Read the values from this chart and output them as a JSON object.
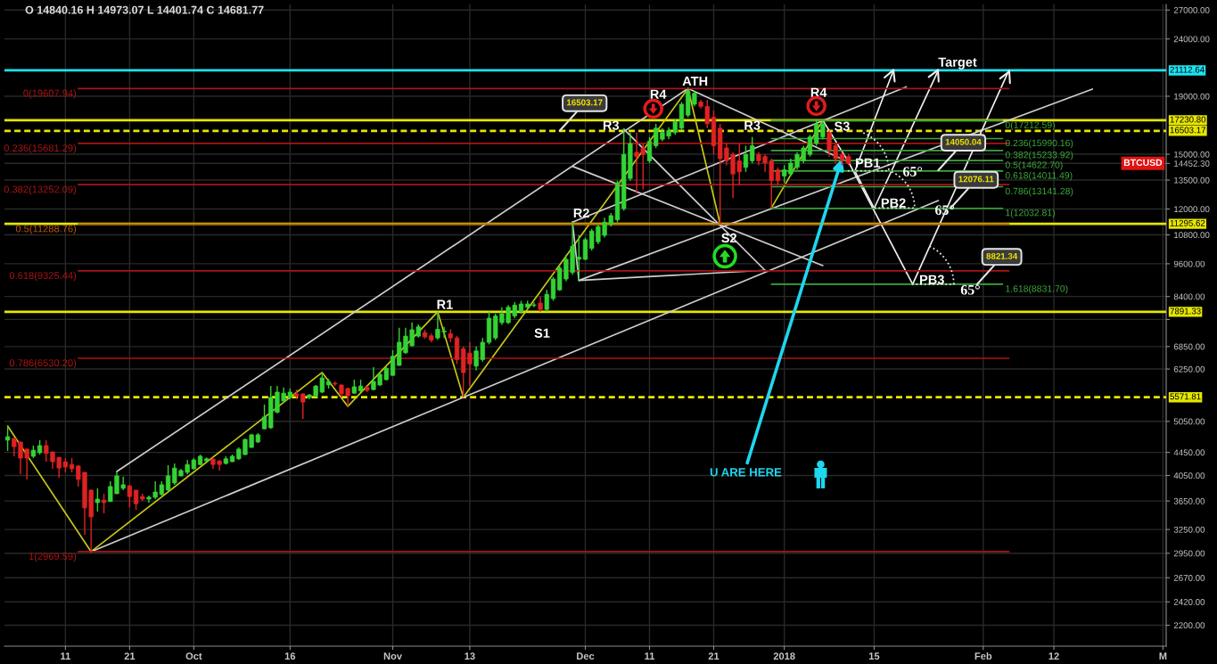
{
  "chart_data": {
    "type": "candlestick",
    "x": [
      "2017-09-02",
      "2017-09-03",
      "2017-09-04",
      "2017-09-05",
      "2017-09-06",
      "2017-09-07",
      "2017-09-08",
      "2017-09-09",
      "2017-09-10",
      "2017-09-11",
      "2017-09-12",
      "2017-09-13",
      "2017-09-14",
      "2017-09-15",
      "2017-09-16",
      "2017-09-17",
      "2017-09-18",
      "2017-09-19",
      "2017-09-20",
      "2017-09-21",
      "2017-09-22",
      "2017-09-23",
      "2017-09-24",
      "2017-09-25",
      "2017-09-26",
      "2017-09-27",
      "2017-09-28",
      "2017-09-29",
      "2017-09-30",
      "2017-10-01",
      "2017-10-02",
      "2017-10-03",
      "2017-10-04",
      "2017-10-05",
      "2017-10-06",
      "2017-10-07",
      "2017-10-08",
      "2017-10-09",
      "2017-10-10",
      "2017-10-11",
      "2017-10-12",
      "2017-10-13",
      "2017-10-14",
      "2017-10-15",
      "2017-10-16",
      "2017-10-17",
      "2017-10-18",
      "2017-10-19",
      "2017-10-20",
      "2017-10-21",
      "2017-10-22",
      "2017-10-23",
      "2017-10-24",
      "2017-10-25",
      "2017-10-26",
      "2017-10-27",
      "2017-10-28",
      "2017-10-29",
      "2017-10-30",
      "2017-10-31",
      "2017-11-01",
      "2017-11-02",
      "2017-11-03",
      "2017-11-04",
      "2017-11-05",
      "2017-11-06",
      "2017-11-07",
      "2017-11-08",
      "2017-11-09",
      "2017-11-10",
      "2017-11-11",
      "2017-11-12",
      "2017-11-13",
      "2017-11-14",
      "2017-11-15",
      "2017-11-16",
      "2017-11-17",
      "2017-11-18",
      "2017-11-19",
      "2017-11-20",
      "2017-11-21",
      "2017-11-22",
      "2017-11-23",
      "2017-11-24",
      "2017-11-25",
      "2017-11-26",
      "2017-11-27",
      "2017-11-28",
      "2017-11-29",
      "2017-11-30",
      "2017-12-01",
      "2017-12-02",
      "2017-12-03",
      "2017-12-04",
      "2017-12-05",
      "2017-12-06",
      "2017-12-07",
      "2017-12-08",
      "2017-12-09",
      "2017-12-10",
      "2017-12-11",
      "2017-12-12",
      "2017-12-13",
      "2017-12-14",
      "2017-12-15",
      "2017-12-16",
      "2017-12-17",
      "2017-12-18",
      "2017-12-19",
      "2017-12-20",
      "2017-12-21",
      "2017-12-22",
      "2017-12-23",
      "2017-12-24",
      "2017-12-25",
      "2017-12-26",
      "2017-12-27",
      "2017-12-28",
      "2017-12-29",
      "2017-12-30",
      "2017-12-31",
      "2018-01-01",
      "2018-01-02",
      "2018-01-03",
      "2018-01-04",
      "2018-01-05",
      "2018-01-06",
      "2018-01-07",
      "2018-01-08",
      "2018-01-09",
      "2018-01-10",
      "2018-01-11"
    ],
    "ohlc": [
      [
        4677,
        4954,
        4477,
        4744
      ],
      [
        4711,
        4720,
        4380,
        4555
      ],
      [
        4643,
        4650,
        4073,
        4347
      ],
      [
        4510,
        4520,
        3986,
        4347
      ],
      [
        4380,
        4575,
        4347,
        4490
      ],
      [
        4445,
        4677,
        4411,
        4575
      ],
      [
        4575,
        4677,
        4284,
        4430
      ],
      [
        4458,
        4470,
        4163,
        4284
      ],
      [
        4361,
        4370,
        4015,
        4175
      ],
      [
        4284,
        4347,
        4102,
        4193
      ],
      [
        4235,
        4347,
        4102,
        4163
      ],
      [
        4211,
        4223,
        3872,
        3986
      ],
      [
        4102,
        4110,
        3181,
        3548
      ],
      [
        3815,
        3828,
        2969.59,
        3421
      ],
      [
        3626,
        3844,
        3497,
        3679
      ],
      [
        3663,
        3760,
        3471,
        3626
      ],
      [
        3642,
        3956,
        3640,
        3872
      ],
      [
        3760,
        4116,
        3755,
        4044
      ],
      [
        3844,
        4032,
        3815,
        3900
      ],
      [
        3883,
        3900,
        3558,
        3716
      ],
      [
        3815,
        3820,
        3522,
        3610
      ],
      [
        3716,
        3760,
        3652,
        3679
      ],
      [
        3679,
        3732,
        3626,
        3706
      ],
      [
        3706,
        3956,
        3679,
        3787
      ],
      [
        3749,
        3956,
        3732,
        3900
      ],
      [
        3815,
        4223,
        3804,
        4044
      ],
      [
        3928,
        4254,
        3900,
        4175
      ],
      [
        4044,
        4163,
        4032,
        4133
      ],
      [
        4102,
        4315,
        4073,
        4235
      ],
      [
        4163,
        4347,
        4151,
        4315
      ],
      [
        4235,
        4411,
        4223,
        4380
      ],
      [
        4297,
        4361,
        4284,
        4335
      ],
      [
        4328,
        4361,
        4163,
        4235
      ],
      [
        4297,
        4315,
        4133,
        4235
      ],
      [
        4254,
        4380,
        4235,
        4335
      ],
      [
        4284,
        4411,
        4280,
        4380
      ],
      [
        4335,
        4542,
        4315,
        4510
      ],
      [
        4411,
        4711,
        4399,
        4691
      ],
      [
        4542,
        4800,
        4529,
        4780
      ],
      [
        4643,
        4814,
        4623,
        4780
      ],
      [
        4898,
        5408,
        4890,
        5141
      ],
      [
        4919,
        5832,
        4898,
        5568
      ],
      [
        5240,
        5832,
        5217,
        5689
      ],
      [
        5486,
        5798,
        5447,
        5665
      ],
      [
        5568,
        5773,
        5527,
        5689
      ],
      [
        5648,
        5748,
        5527,
        5600
      ],
      [
        5648,
        5660,
        5101,
        5463
      ],
      [
        5568,
        5648,
        5527,
        5624
      ],
      [
        5608,
        5857,
        5568,
        5832
      ],
      [
        5689,
        6163,
        5665,
        6029
      ],
      [
        5857,
        6003,
        5773,
        5942
      ],
      [
        5899,
        5942,
        5832,
        5880
      ],
      [
        5857,
        5870,
        5568,
        5648
      ],
      [
        5773,
        5798,
        5369,
        5608
      ],
      [
        5665,
        5985,
        5648,
        5815
      ],
      [
        5715,
        5985,
        5689,
        5832
      ],
      [
        5798,
        5832,
        5689,
        5731
      ],
      [
        5748,
        6298,
        5731,
        5942
      ],
      [
        5857,
        6145,
        5832,
        6118
      ],
      [
        5985,
        6298,
        5968,
        6271
      ],
      [
        6091,
        6747,
        6080,
        6585
      ],
      [
        6344,
        7393,
        6330,
        6973
      ],
      [
        6680,
        7393,
        6651,
        7147
      ],
      [
        6874,
        7555,
        6844,
        7336
      ],
      [
        7147,
        7500,
        7105,
        7425
      ],
      [
        7251,
        7336,
        7074,
        7126
      ],
      [
        7157,
        7220,
        6970,
        7032
      ],
      [
        7095,
        7891,
        7050,
        7350
      ],
      [
        7270,
        7420,
        7095,
        7300
      ],
      [
        7220,
        7350,
        6970,
        7095
      ],
      [
        7095,
        7157,
        6380,
        6495
      ],
      [
        6790,
        6850,
        5572,
        6160
      ],
      [
        6670,
        6970,
        5835,
        6380
      ],
      [
        6325,
        6850,
        6215,
        6730
      ],
      [
        6495,
        7095,
        6440,
        6970
      ],
      [
        6970,
        7895,
        6910,
        7690
      ],
      [
        7095,
        7830,
        7032,
        7760
      ],
      [
        7550,
        8040,
        7485,
        7830
      ],
      [
        7550,
        8110,
        7510,
        8040
      ],
      [
        7760,
        8210,
        7690,
        8110
      ],
      [
        7895,
        8255,
        7830,
        8150
      ],
      [
        8040,
        8255,
        7970,
        8150
      ],
      [
        8100,
        8200,
        8040,
        8120
      ],
      [
        8180,
        8400,
        7895,
        7970
      ],
      [
        7970,
        8630,
        7895,
        8475
      ],
      [
        8330,
        9100,
        8255,
        9020
      ],
      [
        8630,
        9515,
        8600,
        9430
      ],
      [
        9020,
        9950,
        8940,
        9775
      ],
      [
        9265,
        11370,
        9180,
        10310
      ],
      [
        9775,
        10780,
        8970,
        9860
      ],
      [
        9775,
        10680,
        9740,
        10590
      ],
      [
        10220,
        11070,
        10130,
        10970
      ],
      [
        10500,
        11270,
        10400,
        11170
      ],
      [
        10780,
        11580,
        10680,
        11370
      ],
      [
        11270,
        11800,
        11170,
        11680
      ],
      [
        11480,
        13470,
        11370,
        13350
      ],
      [
        12020,
        16680,
        11920,
        14990
      ],
      [
        13590,
        16385,
        13470,
        15670
      ],
      [
        15120,
        16385,
        12770,
        14860
      ],
      [
        15390,
        15670,
        13000,
        14990
      ],
      [
        14600,
        16095,
        14470,
        15810
      ],
      [
        15530,
        16980,
        15390,
        16680
      ],
      [
        15950,
        16680,
        15810,
        16385
      ],
      [
        16150,
        16740,
        15950,
        16530
      ],
      [
        16385,
        17282,
        16236,
        17130
      ],
      [
        16680,
        18560,
        16530,
        18390
      ],
      [
        17590,
        19608,
        17440,
        19400
      ],
      [
        18390,
        19400,
        18230,
        19230
      ],
      [
        18560,
        18730,
        18070,
        18230
      ],
      [
        18230,
        18730,
        16680,
        16980
      ],
      [
        17440,
        17920,
        14990,
        15530
      ],
      [
        16680,
        16980,
        11290,
        14730
      ],
      [
        15390,
        15670,
        14340,
        14600
      ],
      [
        14990,
        15120,
        12550,
        13840
      ],
      [
        14600,
        15670,
        13240,
        13960
      ],
      [
        14220,
        15530,
        13960,
        14990
      ],
      [
        14600,
        16095,
        14470,
        15530
      ],
      [
        14990,
        15120,
        14340,
        14600
      ],
      [
        14860,
        14990,
        13960,
        14470
      ],
      [
        14600,
        14730,
        12060,
        13470
      ],
      [
        14080,
        14220,
        13240,
        13470
      ],
      [
        13720,
        14340,
        13350,
        14080
      ],
      [
        13840,
        14730,
        13720,
        14470
      ],
      [
        14220,
        15120,
        14080,
        14990
      ],
      [
        14600,
        15530,
        14470,
        15390
      ],
      [
        14990,
        16236,
        14860,
        16095
      ],
      [
        15670,
        17282,
        15530,
        16980
      ],
      [
        16095,
        17231,
        15950,
        16980
      ],
      [
        16385,
        16530,
        14860,
        15260
      ],
      [
        15530,
        15670,
        14470,
        14730
      ],
      [
        14990,
        15120,
        14340,
        14600
      ],
      [
        14860,
        14990,
        14340,
        14452.3
      ]
    ],
    "colors": [
      "#34d334",
      "#e02222",
      "#e02222",
      "#e02222",
      "#34d334",
      "#34d334",
      "#e02222",
      "#e02222",
      "#e02222",
      "#e02222",
      "#e02222",
      "#e02222",
      "#e02222",
      "#e02222",
      "#34d334",
      "#e02222",
      "#34d334",
      "#34d334",
      "#34d334",
      "#e02222",
      "#e02222",
      "#e02222",
      "#34d334",
      "#34d334",
      "#34d334",
      "#34d334",
      "#34d334",
      "#34d334",
      "#34d334",
      "#34d334",
      "#34d334",
      "#34d334",
      "#e02222",
      "#e02222",
      "#34d334",
      "#34d334",
      "#34d334",
      "#34d334",
      "#34d334",
      "#34d334",
      "#34d334",
      "#34d334",
      "#34d334",
      "#34d334",
      "#34d334",
      "#e02222",
      "#e02222",
      "#34d334",
      "#34d334",
      "#34d334",
      "#34d334",
      "#e02222",
      "#e02222",
      "#e02222",
      "#34d334",
      "#34d334",
      "#e02222",
      "#34d334",
      "#34d334",
      "#34d334",
      "#34d334",
      "#34d334",
      "#34d334",
      "#34d334",
      "#34d334",
      "#e02222",
      "#e02222",
      "#34d334",
      "#34d334",
      "#e02222",
      "#e02222",
      "#e02222",
      "#e02222",
      "#34d334",
      "#34d334",
      "#34d334",
      "#34d334",
      "#34d334",
      "#34d334",
      "#34d334",
      "#34d334",
      "#34d334",
      "#34d334",
      "#e02222",
      "#34d334",
      "#34d334",
      "#34d334",
      "#34d334",
      "#34d334",
      "#34d334",
      "#34d334",
      "#34d334",
      "#34d334",
      "#34d334",
      "#34d334",
      "#34d334",
      "#34d334",
      "#34d334",
      "#e02222",
      "#e02222",
      "#34d334",
      "#34d334",
      "#34d334",
      "#34d334",
      "#34d334",
      "#34d334",
      "#34d334",
      "#34d334",
      "#e02222",
      "#e02222",
      "#e02222",
      "#e02222",
      "#e02222",
      "#e02222",
      "#e02222",
      "#34d334",
      "#34d334",
      "#e02222",
      "#e02222",
      "#e02222",
      "#e02222",
      "#34d334",
      "#34d334",
      "#34d334",
      "#34d334",
      "#34d334",
      "#34d334",
      "#34d334",
      "#e02222",
      "#e02222",
      "#e02222",
      "#e02222"
    ],
    "series": [
      {
        "type": "line",
        "x": [
          "2017-09-02",
          "2017-09-15",
          "2017-10-21",
          "2017-10-25",
          "2017-11-08",
          "2017-11-12",
          "2017-12-17",
          "2017-12-22"
        ],
        "values": [
          4954,
          2969.59,
          6163,
          5369,
          7891.33,
          5571.81,
          19607.94,
          11290
        ],
        "color": "#c8c814"
      },
      {
        "type": "line",
        "x": [
          "2017-12-30",
          "2018-01-07"
        ],
        "values": [
          12060,
          17231
        ],
        "color": "#c8c814"
      },
      {
        "type": "line",
        "x": [
          "2017-09-19",
          "2017-12-17"
        ],
        "values": [
          4116,
          19607.94
        ],
        "color": "#cfcfcf"
      },
      {
        "type": "line",
        "x": [
          "2017-09-15",
          "2018-01-25"
        ],
        "values": [
          2969.59,
          12420
        ],
        "color": "#cfcfcf"
      },
      {
        "type": "line",
        "x": [
          "2017-11-29",
          "2017-11-30",
          "2018-02-18"
        ],
        "values": [
          11370,
          8970,
          19565
        ],
        "color": "#cfcfcf"
      },
      {
        "type": "line",
        "x": [
          "2017-11-29",
          "2018-01-07"
        ],
        "values": [
          14278,
          9531
        ],
        "color": "#cfcfcf"
      },
      {
        "type": "line",
        "x": [
          "2017-12-07",
          "2017-12-29"
        ],
        "values": [
          16613,
          9347
        ],
        "color": "#cfcfcf"
      },
      {
        "type": "line",
        "x": [
          "2017-11-29",
          "2018-01-20"
        ],
        "values": [
          11370,
          19740
        ],
        "color": "#cfcfcf"
      },
      {
        "type": "line",
        "x": [
          "2017-12-17",
          "2018-01-11"
        ],
        "values": [
          19607.94,
          14540
        ],
        "color": "#cfcfcf"
      },
      {
        "type": "line",
        "x": [
          "2017-11-30",
          "2017-12-29"
        ],
        "values": [
          8970,
          9347
        ],
        "color": "#cfcfcf"
      },
      {
        "type": "line",
        "x": [
          "2018-01-07",
          "2018-01-11"
        ],
        "values": [
          17231,
          14540
        ],
        "color": "#eeeeee"
      },
      {
        "type": "line",
        "x": [
          "2018-01-11",
          "2018-01-21"
        ],
        "values": [
          14540,
          8831.7
        ],
        "color": "#eeeeee"
      },
      {
        "type": "line",
        "x": [
          "2018-01-12",
          "2018-01-18"
        ],
        "values": [
          14005,
          21112.64
        ],
        "color": "#eeeeee"
      },
      {
        "type": "line",
        "x": [
          "2018-01-12",
          "2018-01-15"
        ],
        "values": [
          14005,
          12032.81
        ],
        "color": "#eeeeee"
      },
      {
        "type": "line",
        "x": [
          "2018-01-15",
          "2018-01-25"
        ],
        "values": [
          12032.81,
          21112.64
        ],
        "color": "#eeeeee"
      },
      {
        "type": "line",
        "x": [
          "2018-01-21",
          "2018-02-05"
        ],
        "values": [
          8831.7,
          21112.64
        ],
        "color": "#eeeeee"
      },
      {
        "type": "line",
        "name": "0(19607.94)",
        "x": [
          "2017-09-13",
          "2018-02-05"
        ],
        "values": [
          19607.94,
          19607.94
        ],
        "color": "#a81414"
      },
      {
        "type": "line",
        "name": "0.236(15681.29)",
        "x": [
          "2017-09-13",
          "2018-02-05"
        ],
        "values": [
          15681.29,
          15681.29
        ],
        "color": "#a81414"
      },
      {
        "type": "line",
        "name": "0.382(13252.09)",
        "x": [
          "2017-09-13",
          "2018-02-05"
        ],
        "values": [
          13252.09,
          13252.09
        ],
        "color": "#a81414"
      },
      {
        "type": "line",
        "name": "0.5(11288.76)",
        "x": [
          "2017-09-13",
          "2018-02-05"
        ],
        "values": [
          11288.76,
          11288.76
        ],
        "color": "#c2560e"
      },
      {
        "type": "line",
        "name": "0.618(9325.44)",
        "x": [
          "2017-09-13",
          "2018-02-05"
        ],
        "values": [
          9325.44,
          9325.44
        ],
        "color": "#a81414"
      },
      {
        "type": "line",
        "name": "0.786(6530.20)",
        "x": [
          "2017-09-13",
          "2018-02-05"
        ],
        "values": [
          6530.2,
          6530.2
        ],
        "color": "#a81414"
      },
      {
        "type": "line",
        "name": "1(2969.59)",
        "x": [
          "2017-09-13",
          "2018-02-05"
        ],
        "values": [
          2969.59,
          2969.59
        ],
        "color": "#a81414"
      },
      {
        "type": "line",
        "name": "0(17212.59)",
        "x": [
          "2017-12-30",
          "2018-02-04"
        ],
        "values": [
          17212.59,
          17212.59
        ],
        "color": "#3aa83a"
      },
      {
        "type": "line",
        "name": "0.236(15990.16)",
        "x": [
          "2017-12-30",
          "2018-02-04"
        ],
        "values": [
          15990.16,
          15990.16
        ],
        "color": "#3aa83a"
      },
      {
        "type": "line",
        "name": "0.382(15233.92)",
        "x": [
          "2017-12-30",
          "2018-02-04"
        ],
        "values": [
          15233.92,
          15233.92
        ],
        "color": "#3aa83a"
      },
      {
        "type": "line",
        "name": "0.5(14622.70)",
        "x": [
          "2017-12-30",
          "2018-02-04"
        ],
        "values": [
          14622.7,
          14622.7
        ],
        "color": "#3aa83a"
      },
      {
        "type": "line",
        "name": "0.618(14011.49)",
        "x": [
          "2017-12-30",
          "2018-02-04"
        ],
        "values": [
          14011.49,
          14011.49
        ],
        "color": "#3aa83a"
      },
      {
        "type": "line",
        "name": "0.786(13141.28)",
        "x": [
          "2017-12-30",
          "2018-02-04"
        ],
        "values": [
          13141.28,
          13141.28
        ],
        "color": "#3aa83a"
      },
      {
        "type": "line",
        "name": "1(12032.81)",
        "x": [
          "2017-12-30",
          "2018-02-04"
        ],
        "values": [
          12032.81,
          12032.81
        ],
        "color": "#3aa83a"
      },
      {
        "type": "line",
        "name": "1.618(8831.70)",
        "x": [
          "2017-12-30",
          "2018-02-04"
        ],
        "values": [
          8831.7,
          8831.7
        ],
        "color": "#3aa83a"
      }
    ],
    "ref_lines": [
      {
        "axis": "y",
        "value": 21112.64,
        "label": "21112.64",
        "color": "#1ee3f2"
      },
      {
        "axis": "y",
        "value": 17230.8,
        "label": "17230.80",
        "color": "#e6e600"
      },
      {
        "axis": "y",
        "value": 16503.17,
        "label": "16503.17",
        "color": "#e6e600",
        "line_style": "dashed"
      },
      {
        "axis": "y",
        "value": 11295.62,
        "label": "11295.62",
        "color": "#e6e600"
      },
      {
        "axis": "y",
        "value": 7891.33,
        "label": "7891.33",
        "color": "#e6e600"
      },
      {
        "axis": "y",
        "value": 5571.81,
        "label": "5571.81",
        "color": "#e6e600",
        "line_style": "dashed"
      }
    ],
    "annotations": [
      "O 14840.16 H 14973.07 L 14401.74 C 14681.77",
      {
        "text": "R1",
        "x": "2017-11-08",
        "y": 7891.33
      },
      "S1",
      {
        "text": "R2",
        "x": "2017-11-29",
        "y": 11370
      },
      {
        "text": "R3",
        "x": "2017-12-05",
        "y": 16800
      },
      {
        "text": "R4",
        "x": "2017-12-12",
        "y": 19607.94
      },
      {
        "text": "ATH",
        "x": "2017-12-17",
        "y": 19608
      },
      {
        "text": "R3",
        "x": "2017-12-27",
        "y": 16800
      },
      {
        "text": "S2",
        "x": "2017-12-22",
        "y": 11290
      },
      {
        "text": "R4",
        "x": "2018-01-06",
        "y": 19607.94
      },
      {
        "text": "S3",
        "x": "2018-01-10",
        "y": 16735
      },
      {
        "text": "PB1",
        "x": "2018-01-14",
        "y": 14420
      },
      {
        "text": "PB2",
        "x": "2018-01-18",
        "y": 12245
      },
      {
        "text": "PB3",
        "x": "2018-01-24",
        "y": 8960
      },
      {
        "text": "65°",
        "x": "2018-01-21",
        "y": 13905
      },
      {
        "text": "65°",
        "x": "2018-01-26",
        "y": 11890
      },
      {
        "text": "65°",
        "x": "2018-01-30",
        "y": 8831.7
      },
      {
        "text": "Target",
        "x": "2018-01-28",
        "y": 21112.64
      },
      {
        "text": "16503.17",
        "x": "2017-11-27",
        "y": 16503.17
      },
      {
        "text": "14050.04",
        "x": "2018-01-25",
        "y": 14050.04
      },
      {
        "text": "12076.11",
        "x": "2018-01-27",
        "y": 12076.11
      },
      {
        "text": "8821.34",
        "x": "2018-01-31",
        "y": 8821.34
      },
      {
        "text": "U ARE HERE",
        "x": "2018-01-10",
        "y": 14735
      },
      "BTCUSD"
    ],
    "xlim": [
      "2017-09-01T12:00",
      "2018-03-01T12:00"
    ],
    "xticks": [
      {
        "value": "2017-09-11",
        "label": "11"
      },
      {
        "value": "2017-09-21",
        "label": "21"
      },
      {
        "value": "2017-10-01",
        "label": "Oct"
      },
      {
        "value": "2017-10-16",
        "label": "16"
      },
      {
        "value": "2017-11-01",
        "label": "Nov"
      },
      {
        "value": "2017-11-13",
        "label": "13"
      },
      {
        "value": "2017-12-01",
        "label": "Dec"
      },
      {
        "value": "2017-12-11",
        "label": "11"
      },
      {
        "value": "2017-12-21",
        "label": "21"
      },
      {
        "value": "2018-01-01",
        "label": "2018"
      },
      {
        "value": "2018-01-15",
        "label": "15"
      },
      {
        "value": "2018-02-01",
        "label": "Feb"
      },
      {
        "value": "2018-02-12",
        "label": "12"
      },
      {
        "value": "2018-03-01",
        "label": "M"
      }
    ],
    "ylim": [
      2020,
      27620
    ],
    "yticks": [
      {
        "value": 27000,
        "label": "27000.00"
      },
      {
        "value": 24000,
        "label": "24000.00"
      },
      {
        "value": 19000,
        "label": "19000.00"
      },
      {
        "value": 15000,
        "label": "15000.00"
      },
      {
        "value": 14452.3,
        "label": "14452.30"
      },
      {
        "value": 13500,
        "label": "13500.00"
      },
      {
        "value": 12000,
        "label": "12000.00"
      },
      {
        "value": 10800,
        "label": "10800.00"
      },
      {
        "value": 9600,
        "label": "9600.00"
      },
      {
        "value": 8400,
        "label": "8400.00"
      },
      {
        "value": 7650,
        "label": null
      },
      {
        "value": 6850,
        "label": "6850.00"
      },
      {
        "value": 6250,
        "label": "6250.00"
      },
      {
        "value": 5050,
        "label": "5050.00"
      },
      {
        "value": 4450,
        "label": "4450.00"
      },
      {
        "value": 4050,
        "label": "4050.00"
      },
      {
        "value": 3650,
        "label": "3650.00"
      },
      {
        "value": 3250,
        "label": "3250.00"
      },
      {
        "value": 2950,
        "label": "2950.00"
      },
      {
        "value": 2670,
        "label": "2670.00"
      },
      {
        "value": 2420,
        "label": "2420.00"
      },
      {
        "value": 2200,
        "label": "2200.00"
      }
    ],
    "log": true,
    "grid": true
  }
}
